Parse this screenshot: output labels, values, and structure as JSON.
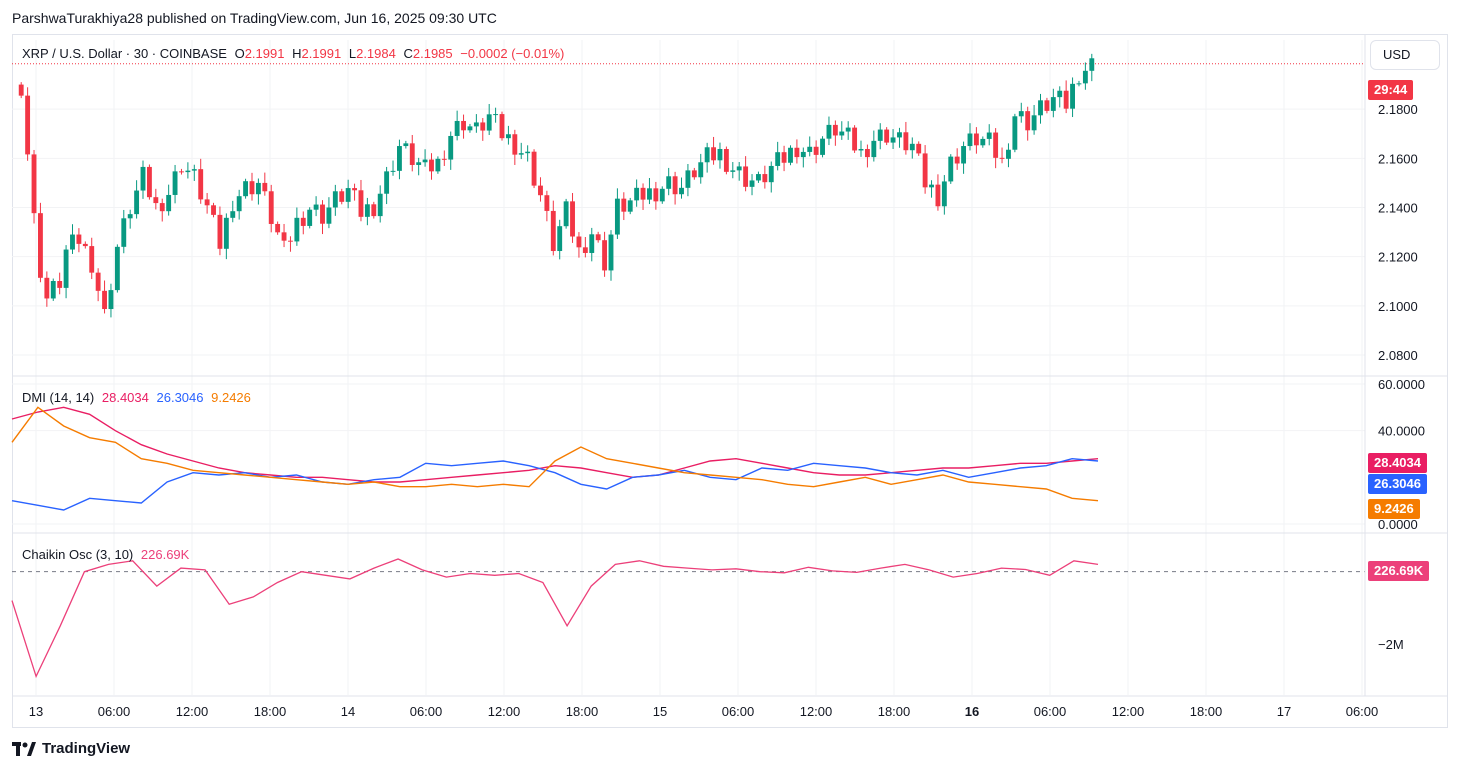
{
  "header": {
    "publisher_text": "ParshwaTurakhiya28 published on TradingView.com, Jun 16, 2025 09:30 UTC"
  },
  "price_pane": {
    "symbol": "XRP / U.S. Dollar · 30 · COINBASE",
    "open_label": "O",
    "open": "2.1991",
    "high_label": "H",
    "high": "2.1991",
    "low_label": "L",
    "low": "2.1984",
    "close_label": "C",
    "close": "2.1985",
    "change": "−0.0002 (−0.01%)",
    "currency_button": "USD",
    "countdown_tag": "29:44",
    "y_ticks": [
      "2.1800",
      "2.1600",
      "2.1400",
      "2.1200",
      "2.1000",
      "2.0800"
    ]
  },
  "dmi_pane": {
    "label": "DMI (14, 14)",
    "adx": "28.4034",
    "plus_di": "26.3046",
    "minus_di": "9.2426",
    "y_ticks": [
      "60.0000",
      "40.0000",
      "0.0000"
    ]
  },
  "chaikin_pane": {
    "label": "Chaikin Osc (3, 10)",
    "value": "226.69K",
    "y_ticks": [
      "0",
      "−2M"
    ]
  },
  "x_axis": {
    "labels": [
      "13",
      "06:00",
      "12:00",
      "18:00",
      "14",
      "06:00",
      "12:00",
      "18:00",
      "15",
      "06:00",
      "12:00",
      "18:00",
      "16",
      "06:00",
      "12:00",
      "18:00",
      "17",
      "06:00"
    ]
  },
  "footer": {
    "brand": "TradingView"
  },
  "colors": {
    "up": "#089981",
    "down": "#f23645",
    "adx": "#e91e63",
    "plus_di": "#2962ff",
    "minus_di": "#f57c00",
    "chaikin": "#ec407a"
  },
  "chart_data": [
    {
      "type": "candlestick",
      "title": "XRP / U.S. Dollar · 30 · COINBASE",
      "ylim": [
        2.08,
        2.2
      ],
      "x_range": [
        "13",
        "17 06:00"
      ],
      "close_points": [
        {
          "t": 0,
          "c": 2.19
        },
        {
          "t": 2,
          "c": 2.135
        },
        {
          "t": 3,
          "c": 2.115
        },
        {
          "t": 4,
          "c": 2.103
        },
        {
          "t": 6,
          "c": 2.11
        },
        {
          "t": 7,
          "c": 2.122
        },
        {
          "t": 9,
          "c": 2.127
        },
        {
          "t": 11,
          "c": 2.118
        },
        {
          "t": 13,
          "c": 2.096
        },
        {
          "t": 15,
          "c": 2.124
        },
        {
          "t": 17,
          "c": 2.14
        },
        {
          "t": 19,
          "c": 2.152
        },
        {
          "t": 21,
          "c": 2.14
        },
        {
          "t": 23,
          "c": 2.146
        },
        {
          "t": 25,
          "c": 2.158
        },
        {
          "t": 27,
          "c": 2.152
        },
        {
          "t": 29,
          "c": 2.14
        },
        {
          "t": 31,
          "c": 2.125
        },
        {
          "t": 33,
          "c": 2.143
        },
        {
          "t": 35,
          "c": 2.148
        },
        {
          "t": 37,
          "c": 2.15
        },
        {
          "t": 39,
          "c": 2.136
        },
        {
          "t": 41,
          "c": 2.122
        },
        {
          "t": 43,
          "c": 2.134
        },
        {
          "t": 45,
          "c": 2.14
        },
        {
          "t": 47,
          "c": 2.137
        },
        {
          "t": 49,
          "c": 2.143
        },
        {
          "t": 51,
          "c": 2.147
        },
        {
          "t": 53,
          "c": 2.138
        },
        {
          "t": 55,
          "c": 2.141
        },
        {
          "t": 57,
          "c": 2.152
        },
        {
          "t": 59,
          "c": 2.165
        },
        {
          "t": 61,
          "c": 2.16
        },
        {
          "t": 63,
          "c": 2.155
        },
        {
          "t": 65,
          "c": 2.158
        },
        {
          "t": 67,
          "c": 2.17
        },
        {
          "t": 69,
          "c": 2.175
        },
        {
          "t": 71,
          "c": 2.171
        },
        {
          "t": 73,
          "c": 2.177
        },
        {
          "t": 75,
          "c": 2.17
        },
        {
          "t": 77,
          "c": 2.166
        },
        {
          "t": 79,
          "c": 2.16
        },
        {
          "t": 81,
          "c": 2.145
        },
        {
          "t": 83,
          "c": 2.125
        },
        {
          "t": 85,
          "c": 2.138
        },
        {
          "t": 87,
          "c": 2.122
        },
        {
          "t": 89,
          "c": 2.13
        },
        {
          "t": 91,
          "c": 2.118
        },
        {
          "t": 93,
          "c": 2.14
        },
        {
          "t": 95,
          "c": 2.142
        },
        {
          "t": 97,
          "c": 2.145
        },
        {
          "t": 99,
          "c": 2.147
        },
        {
          "t": 101,
          "c": 2.15
        },
        {
          "t": 103,
          "c": 2.148
        },
        {
          "t": 105,
          "c": 2.155
        },
        {
          "t": 107,
          "c": 2.16
        },
        {
          "t": 109,
          "c": 2.162
        },
        {
          "t": 111,
          "c": 2.156
        },
        {
          "t": 113,
          "c": 2.152
        },
        {
          "t": 115,
          "c": 2.15
        },
        {
          "t": 117,
          "c": 2.156
        },
        {
          "t": 119,
          "c": 2.16
        },
        {
          "t": 121,
          "c": 2.165
        },
        {
          "t": 123,
          "c": 2.162
        },
        {
          "t": 125,
          "c": 2.168
        },
        {
          "t": 127,
          "c": 2.172
        },
        {
          "t": 129,
          "c": 2.168
        },
        {
          "t": 131,
          "c": 2.162
        },
        {
          "t": 133,
          "c": 2.168
        },
        {
          "t": 135,
          "c": 2.17
        },
        {
          "t": 137,
          "c": 2.167
        },
        {
          "t": 139,
          "c": 2.165
        },
        {
          "t": 141,
          "c": 2.15
        },
        {
          "t": 143,
          "c": 2.145
        },
        {
          "t": 145,
          "c": 2.158
        },
        {
          "t": 147,
          "c": 2.165
        },
        {
          "t": 149,
          "c": 2.168
        },
        {
          "t": 151,
          "c": 2.166
        },
        {
          "t": 153,
          "c": 2.158
        },
        {
          "t": 155,
          "c": 2.178
        },
        {
          "t": 157,
          "c": 2.175
        },
        {
          "t": 159,
          "c": 2.18
        },
        {
          "t": 161,
          "c": 2.184
        },
        {
          "t": 163,
          "c": 2.182
        },
        {
          "t": 165,
          "c": 2.195
        },
        {
          "t": 167,
          "c": 2.198
        }
      ]
    },
    {
      "type": "line",
      "title": "DMI (14, 14)",
      "ylim": [
        0,
        60
      ],
      "series": [
        {
          "name": "28.4034",
          "values": [
            45,
            48,
            50,
            47,
            40,
            34,
            30,
            27,
            24,
            22,
            21,
            20,
            20,
            19,
            18,
            18,
            19,
            20,
            21,
            22,
            23,
            25,
            24,
            22,
            20,
            21,
            24,
            27,
            28,
            26,
            24,
            22,
            21,
            21,
            22,
            23,
            24,
            24,
            25,
            26,
            26,
            27,
            28
          ]
        },
        {
          "name": "26.3046",
          "values": [
            10,
            8,
            6,
            11,
            10,
            9,
            18,
            22,
            21,
            22,
            20,
            21,
            18,
            17,
            19,
            20,
            26,
            25,
            26,
            27,
            25,
            22,
            17,
            15,
            20,
            21,
            23,
            20,
            19,
            24,
            23,
            26,
            25,
            24,
            22,
            21,
            23,
            20,
            22,
            24,
            25,
            28,
            27
          ]
        },
        {
          "name": "9.2426",
          "values": [
            35,
            50,
            42,
            37,
            35,
            28,
            26,
            23,
            22,
            21,
            20,
            19,
            18,
            17,
            18,
            16,
            16,
            17,
            16,
            17,
            16,
            27,
            33,
            28,
            26,
            24,
            22,
            21,
            20,
            19,
            17,
            16,
            18,
            20,
            17,
            19,
            21,
            18,
            17,
            16,
            15,
            11,
            10
          ]
        }
      ]
    },
    {
      "type": "line",
      "title": "Chaikin Osc (3, 10)",
      "ylim": [
        -3000,
        600
      ],
      "ylabel": "",
      "series": [
        {
          "name": "226.69K",
          "values": [
            -800,
            -2900,
            -1500,
            0,
            200,
            300,
            -400,
            100,
            50,
            -900,
            -700,
            -300,
            0,
            -100,
            -200,
            100,
            350,
            50,
            -150,
            -50,
            -100,
            -50,
            -300,
            -1500,
            -400,
            200,
            300,
            150,
            100,
            50,
            80,
            0,
            -30,
            120,
            20,
            -20,
            100,
            200,
            50,
            -150,
            -50,
            100,
            60,
            -100,
            300,
            200
          ]
        }
      ]
    }
  ]
}
